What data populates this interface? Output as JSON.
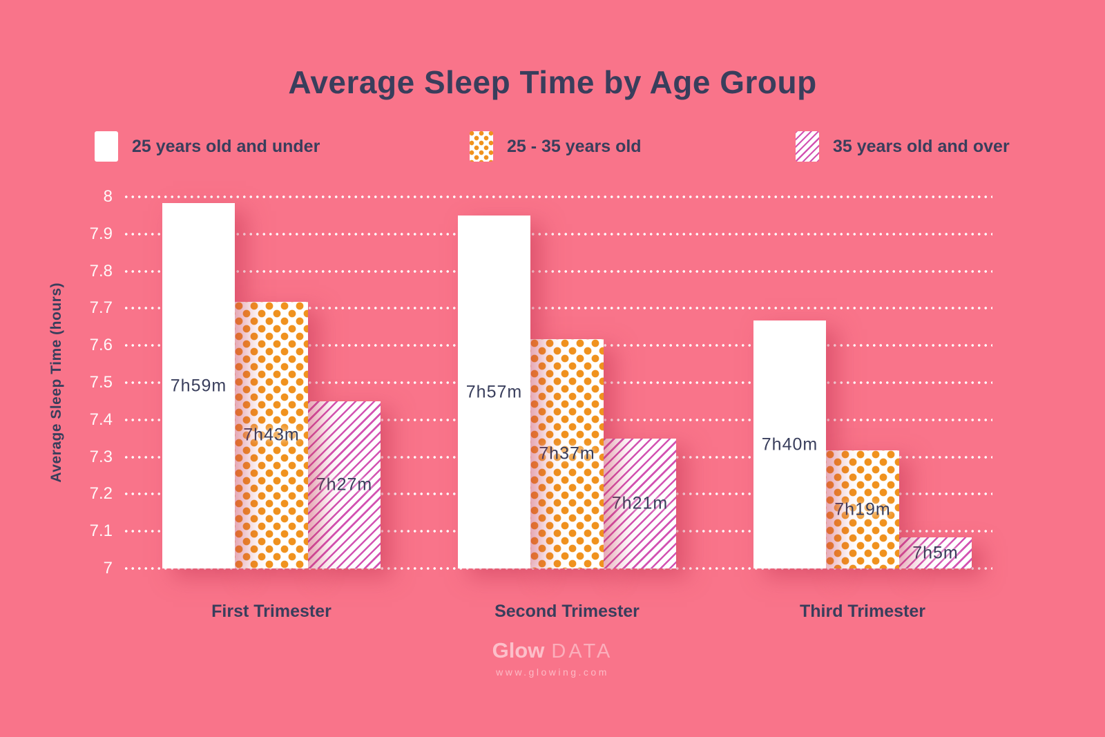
{
  "title": "Average Sleep Time by Age Group",
  "legend": [
    {
      "label": "25 years old and under",
      "pattern": "solid"
    },
    {
      "label": "25 - 35 years old",
      "pattern": "dots"
    },
    {
      "label": "35 years old and over",
      "pattern": "stripes"
    }
  ],
  "colors": {
    "background": "#F9748A",
    "text_dark": "#393E5C",
    "bar_solid": "#FFFFFF",
    "dot_orange": "#F0921E",
    "stripe_magenta": "#D252B2",
    "gridline": "#FFFFFF"
  },
  "watermark": {
    "brand_bold": "Glow",
    "brand_light": "DATA",
    "url": "www.glowing.com"
  },
  "chart_data": {
    "type": "bar",
    "title": "Average Sleep Time by Age Group",
    "xlabel": "",
    "ylabel": "Average Sleep Time (hours)",
    "ylim": [
      7,
      8
    ],
    "ytick_labels": [
      "8",
      "7.9",
      "7.8",
      "7.7",
      "7.6",
      "7.5",
      "7.4",
      "7.3",
      "7.2",
      "7.1",
      "7"
    ],
    "grid": "dotted-horizontal",
    "legend_position": "top",
    "categories": [
      "First Trimester",
      "Second Trimester",
      "Third Trimester"
    ],
    "series": [
      {
        "name": "25 years old and under",
        "pattern": "solid",
        "labels": [
          "7h59m",
          "7h57m",
          "7h40m"
        ],
        "values_hours": [
          7.983,
          7.95,
          7.667
        ]
      },
      {
        "name": "25 - 35 years old",
        "pattern": "dots",
        "labels": [
          "7h43m",
          "7h37m",
          "7h19m"
        ],
        "values_hours": [
          7.717,
          7.617,
          7.317
        ]
      },
      {
        "name": "35 years old and over",
        "pattern": "stripes",
        "labels": [
          "7h27m",
          "7h21m",
          "7h5m"
        ],
        "values_hours": [
          7.45,
          7.35,
          7.083
        ]
      }
    ]
  }
}
